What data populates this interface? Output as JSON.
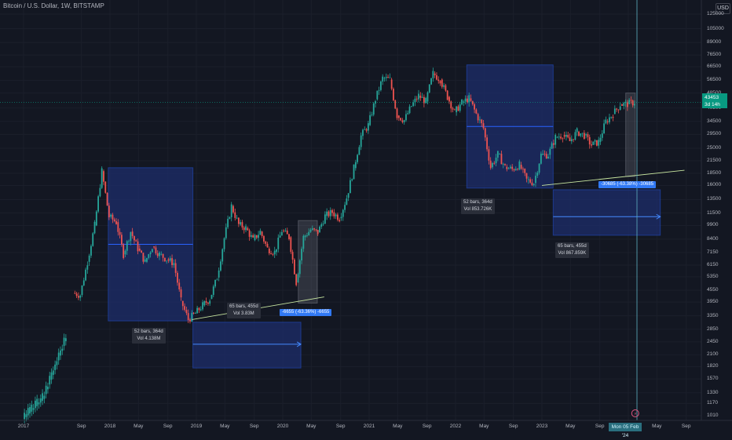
{
  "header": {
    "symbol_title": "Bitcoin / U.S. Dollar, 1W, BITSTAMP",
    "currency_button": "USD"
  },
  "y_axis": {
    "ticks": [
      {
        "value": 125000,
        "label": "125000"
      },
      {
        "value": 105000,
        "label": "105000"
      },
      {
        "value": 89000,
        "label": "89000"
      },
      {
        "value": 76500,
        "label": "76500"
      },
      {
        "value": 66500,
        "label": "66500"
      },
      {
        "value": 56500,
        "label": "56500"
      },
      {
        "value": 48500,
        "label": "48500"
      },
      {
        "value": 40500,
        "label": "40500"
      },
      {
        "value": 34500,
        "label": "34500"
      },
      {
        "value": 29500,
        "label": "29500"
      },
      {
        "value": 25000,
        "label": "25000"
      },
      {
        "value": 21500,
        "label": "21500"
      },
      {
        "value": 18500,
        "label": "18500"
      },
      {
        "value": 16000,
        "label": "16000"
      },
      {
        "value": 13500,
        "label": "13500"
      },
      {
        "value": 11500,
        "label": "11500"
      },
      {
        "value": 9900,
        "label": "9900"
      },
      {
        "value": 8400,
        "label": "8400"
      },
      {
        "value": 7150,
        "label": "7150"
      },
      {
        "value": 6150,
        "label": "6150"
      },
      {
        "value": 5350,
        "label": "5350"
      },
      {
        "value": 4550,
        "label": "4550"
      },
      {
        "value": 3950,
        "label": "3950"
      },
      {
        "value": 3350,
        "label": "3350"
      },
      {
        "value": 2850,
        "label": "2850"
      },
      {
        "value": 2450,
        "label": "2450"
      },
      {
        "value": 2100,
        "label": "2100"
      },
      {
        "value": 1820,
        "label": "1820"
      },
      {
        "value": 1570,
        "label": "1570"
      },
      {
        "value": 1330,
        "label": "1330"
      },
      {
        "value": 1170,
        "label": "1170"
      },
      {
        "value": 1010,
        "label": "1010"
      }
    ]
  },
  "x_axis": {
    "ticks": [
      {
        "t": 2017.67,
        "label": "Sep"
      },
      {
        "t": 2018.0,
        "label": "2018"
      },
      {
        "t": 2018.33,
        "label": "May"
      },
      {
        "t": 2018.67,
        "label": "Sep"
      },
      {
        "t": 2019.0,
        "label": "2019"
      },
      {
        "t": 2019.33,
        "label": "May"
      },
      {
        "t": 2019.67,
        "label": "Sep"
      },
      {
        "t": 2020.0,
        "label": "2020"
      },
      {
        "t": 2020.33,
        "label": "May"
      },
      {
        "t": 2020.67,
        "label": "Sep"
      },
      {
        "t": 2021.0,
        "label": "2021"
      },
      {
        "t": 2021.33,
        "label": "May"
      },
      {
        "t": 2021.67,
        "label": "Sep"
      },
      {
        "t": 2022.0,
        "label": "2022"
      },
      {
        "t": 2022.33,
        "label": "May"
      },
      {
        "t": 2022.67,
        "label": "Sep"
      },
      {
        "t": 2023.0,
        "label": "2023"
      },
      {
        "t": 2023.33,
        "label": "May"
      },
      {
        "t": 2023.67,
        "label": "Sep"
      },
      {
        "t": 2024.0,
        "label": "2024"
      },
      {
        "t": 2024.33,
        "label": "May"
      },
      {
        "t": 2024.67,
        "label": "Sep"
      },
      {
        "t": 2025.0,
        "label": "2025"
      }
    ],
    "first_label": "2017"
  },
  "current_price": {
    "value": 43453,
    "price_label": "43453",
    "countdown_label": "3d 14h"
  },
  "crosshair": {
    "date_label": "Mon 05 Feb '24"
  },
  "annotations": {
    "cycle_2018": {
      "bars_label": "52 bars, 364d",
      "vol_label": "Vol 4.138M"
    },
    "cycle_2019_2020": {
      "bars_label": "65 bars, 455d",
      "vol_label": "Vol 3.83M",
      "change_label": "-6655 (-63.36%) -6655"
    },
    "cycle_2022": {
      "bars_label": "52 bars, 364d",
      "vol_label": "Vol 853.726K"
    },
    "cycle_2023_2024": {
      "bars_label": "65 bars, 455d",
      "vol_label": "Vol 867.859K",
      "change_label": "-30685 (-63.38%) -30685"
    }
  },
  "colors": {
    "up": "#26a69a",
    "down": "#ef5350",
    "box_fill": "#1e2d6b",
    "box_line": "#2962ff",
    "bg": "#131722"
  },
  "chart_data": {
    "type": "candlestick-line",
    "title": "Bitcoin / U.S. Dollar, 1W, BITSTAMP",
    "y_scale": "log",
    "points": [
      {
        "date": "2017-08",
        "price": 4400
      },
      {
        "date": "2017-09",
        "price": 4300
      },
      {
        "date": "2017-10",
        "price": 6400
      },
      {
        "date": "2017-11",
        "price": 9900
      },
      {
        "date": "2017-12",
        "price": 19000
      },
      {
        "date": "2018-01",
        "price": 11000
      },
      {
        "date": "2018-02",
        "price": 10300
      },
      {
        "date": "2018-03",
        "price": 7000
      },
      {
        "date": "2018-04",
        "price": 9200
      },
      {
        "date": "2018-05",
        "price": 7500
      },
      {
        "date": "2018-06",
        "price": 6400
      },
      {
        "date": "2018-07",
        "price": 7700
      },
      {
        "date": "2018-08",
        "price": 7000
      },
      {
        "date": "2018-09",
        "price": 6600
      },
      {
        "date": "2018-10",
        "price": 6300
      },
      {
        "date": "2018-11",
        "price": 4000
      },
      {
        "date": "2018-12",
        "price": 3200
      },
      {
        "date": "2019-01",
        "price": 3450
      },
      {
        "date": "2019-02",
        "price": 3800
      },
      {
        "date": "2019-03",
        "price": 4100
      },
      {
        "date": "2019-04",
        "price": 5300
      },
      {
        "date": "2019-05",
        "price": 8500
      },
      {
        "date": "2019-06",
        "price": 12500
      },
      {
        "date": "2019-07",
        "price": 10000
      },
      {
        "date": "2019-08",
        "price": 9600
      },
      {
        "date": "2019-09",
        "price": 8300
      },
      {
        "date": "2019-10",
        "price": 9200
      },
      {
        "date": "2019-11",
        "price": 7500
      },
      {
        "date": "2019-12",
        "price": 7200
      },
      {
        "date": "2020-01",
        "price": 9300
      },
      {
        "date": "2020-02",
        "price": 8600
      },
      {
        "date": "2020-03",
        "price": 5000
      },
      {
        "date": "2020-04",
        "price": 8600
      },
      {
        "date": "2020-05",
        "price": 9400
      },
      {
        "date": "2020-06",
        "price": 9100
      },
      {
        "date": "2020-07",
        "price": 11100
      },
      {
        "date": "2020-08",
        "price": 11600
      },
      {
        "date": "2020-09",
        "price": 10800
      },
      {
        "date": "2020-10",
        "price": 13800
      },
      {
        "date": "2020-11",
        "price": 19700
      },
      {
        "date": "2020-12",
        "price": 29000
      },
      {
        "date": "2021-01",
        "price": 33000
      },
      {
        "date": "2021-02",
        "price": 45000
      },
      {
        "date": "2021-03",
        "price": 58000
      },
      {
        "date": "2021-04",
        "price": 57000
      },
      {
        "date": "2021-05",
        "price": 37000
      },
      {
        "date": "2021-06",
        "price": 35000
      },
      {
        "date": "2021-07",
        "price": 41500
      },
      {
        "date": "2021-08",
        "price": 47000
      },
      {
        "date": "2021-09",
        "price": 43800
      },
      {
        "date": "2021-10",
        "price": 61300
      },
      {
        "date": "2021-11",
        "price": 57000
      },
      {
        "date": "2021-12",
        "price": 46300
      },
      {
        "date": "2022-01",
        "price": 38500
      },
      {
        "date": "2022-02",
        "price": 43200
      },
      {
        "date": "2022-03",
        "price": 45500
      },
      {
        "date": "2022-04",
        "price": 37700
      },
      {
        "date": "2022-05",
        "price": 31800
      },
      {
        "date": "2022-06",
        "price": 19900
      },
      {
        "date": "2022-07",
        "price": 23300
      },
      {
        "date": "2022-08",
        "price": 20000
      },
      {
        "date": "2022-09",
        "price": 19400
      },
      {
        "date": "2022-10",
        "price": 20500
      },
      {
        "date": "2022-11",
        "price": 17100
      },
      {
        "date": "2022-12",
        "price": 16500
      },
      {
        "date": "2023-01",
        "price": 23100
      },
      {
        "date": "2023-02",
        "price": 23100
      },
      {
        "date": "2023-03",
        "price": 28500
      },
      {
        "date": "2023-04",
        "price": 29300
      },
      {
        "date": "2023-05",
        "price": 27200
      },
      {
        "date": "2023-06",
        "price": 30500
      },
      {
        "date": "2023-07",
        "price": 29200
      },
      {
        "date": "2023-08",
        "price": 26000
      },
      {
        "date": "2023-09",
        "price": 27000
      },
      {
        "date": "2023-10",
        "price": 34500
      },
      {
        "date": "2023-11",
        "price": 37700
      },
      {
        "date": "2023-12",
        "price": 42300
      },
      {
        "date": "2024-01",
        "price": 42500
      },
      {
        "date": "2024-02",
        "price": 43453
      }
    ]
  }
}
